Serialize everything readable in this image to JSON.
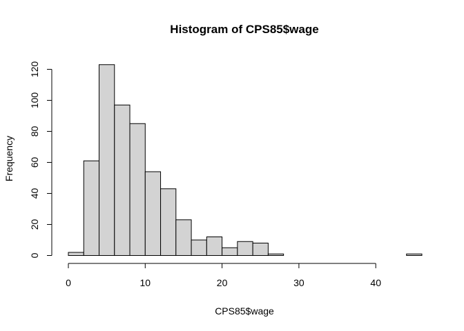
{
  "chart_data": {
    "type": "bar",
    "title": "Histogram of CPS85$wage",
    "xlabel": "CPS85$wage",
    "ylabel": "Frequency",
    "bin_edges": [
      0,
      2,
      4,
      6,
      8,
      10,
      12,
      14,
      16,
      18,
      20,
      22,
      24,
      26,
      28,
      30,
      32,
      34,
      36,
      38,
      40,
      42,
      44,
      46
    ],
    "values": [
      2,
      61,
      123,
      97,
      85,
      54,
      43,
      23,
      10,
      12,
      5,
      9,
      8,
      1,
      0,
      0,
      0,
      0,
      0,
      0,
      0,
      0,
      1
    ],
    "xlim": [
      0,
      46
    ],
    "ylim": [
      0,
      125
    ],
    "x_ticks": [
      0,
      10,
      20,
      30,
      40
    ],
    "y_ticks": [
      0,
      20,
      40,
      60,
      80,
      100,
      120
    ],
    "colors": {
      "bar_fill": "#d3d3d3",
      "bar_stroke": "#000000"
    },
    "grid": false,
    "legend": "none"
  }
}
